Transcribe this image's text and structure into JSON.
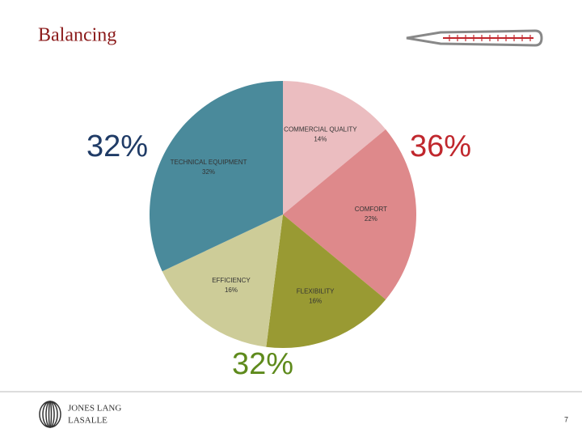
{
  "chart_data": {
    "type": "pie",
    "title": "Balancing",
    "categories": [
      "COMMERCIAL QUALITY",
      "COMFORT",
      "FLEXIBILITY",
      "EFFICIENCY",
      "TECHNICAL EQUIPMENT"
    ],
    "values": [
      14,
      22,
      16,
      16,
      32
    ],
    "value_labels": [
      "14%",
      "22%",
      "16%",
      "16%",
      "32%"
    ],
    "colors": [
      "#ebbdc0",
      "#de898b",
      "#999a33",
      "#cdcc98",
      "#4a8a9b"
    ],
    "annotations": [
      {
        "text": "32%",
        "color": "#1f3b66"
      },
      {
        "text": "36%",
        "color": "#c0272d"
      },
      {
        "text": "32%",
        "color": "#5e8a1c"
      }
    ]
  },
  "footer": {
    "logo_line1": "JONES LANG",
    "logo_line2": "LASALLE",
    "page_number": "7"
  }
}
